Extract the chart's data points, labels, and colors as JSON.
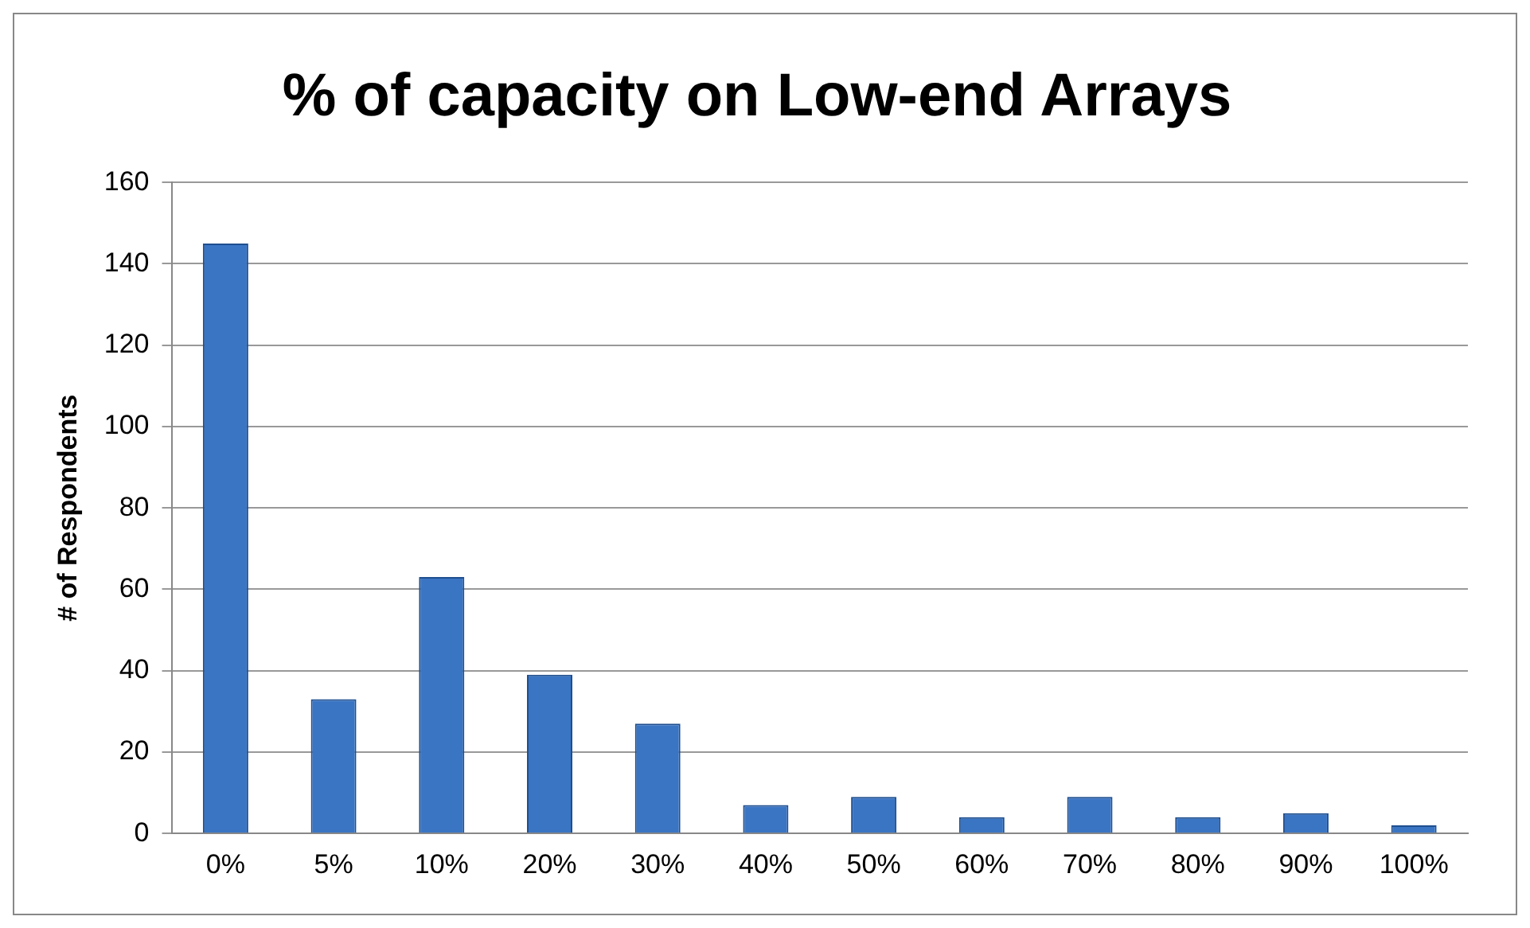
{
  "chart_data": {
    "type": "bar",
    "title": "% of capacity on Low-end Arrays",
    "ylabel": "# of Respondents",
    "categories": [
      "0%",
      "5%",
      "10%",
      "20%",
      "30%",
      "40%",
      "50%",
      "60%",
      "70%",
      "80%",
      "90%",
      "100%"
    ],
    "values": [
      145,
      33,
      63,
      39,
      27,
      7,
      9,
      4,
      9,
      4,
      5,
      2
    ],
    "color": "#3a75c4",
    "ylim": [
      0,
      160
    ],
    "yticks": [
      0,
      20,
      40,
      60,
      80,
      100,
      120,
      140,
      160
    ],
    "grid": "y",
    "legend": false
  }
}
